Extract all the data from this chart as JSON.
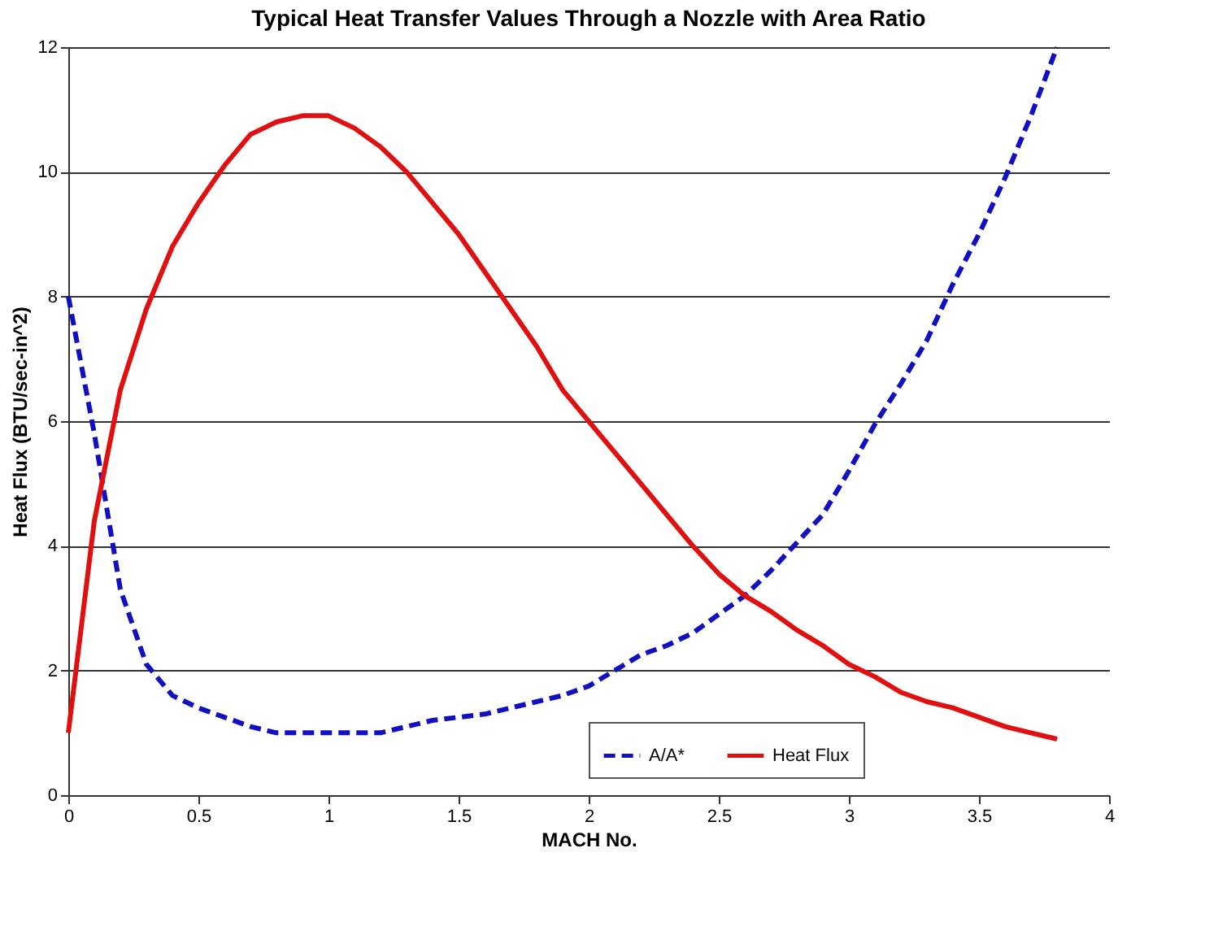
{
  "chart_data": {
    "type": "line",
    "title": "Typical Heat Transfer Values Through a Nozzle with Area Ratio",
    "xlabel": "MACH No.",
    "ylabel": "Heat Flux (BTU/sec-in^2)",
    "x": [
      0,
      0.1,
      0.2,
      0.3,
      0.4,
      0.5,
      0.6,
      0.7,
      0.8,
      0.9,
      1.0,
      1.1,
      1.2,
      1.3,
      1.4,
      1.5,
      1.6,
      1.7,
      1.8,
      1.9,
      2.0,
      2.1,
      2.2,
      2.3,
      2.4,
      2.5,
      2.6,
      2.7,
      2.8,
      2.9,
      3.0,
      3.1,
      3.2,
      3.3,
      3.4,
      3.5,
      3.6,
      3.7,
      3.8
    ],
    "series": [
      {
        "name": "A/A*",
        "color": "#1010c0",
        "line_style": "dashed",
        "values": [
          8.0,
          5.8,
          3.3,
          2.1,
          1.6,
          1.4,
          1.25,
          1.1,
          1.0,
          1.0,
          1.0,
          1.0,
          1.0,
          1.1,
          1.2,
          1.25,
          1.3,
          1.4,
          1.5,
          1.6,
          1.75,
          2.0,
          2.25,
          2.4,
          2.6,
          2.9,
          3.2,
          3.6,
          4.05,
          4.5,
          5.2,
          5.95,
          6.6,
          7.3,
          8.2,
          9.0,
          9.9,
          10.9,
          12.0
        ]
      },
      {
        "name": "Heat Flux",
        "color": "#e01010",
        "line_style": "solid",
        "values": [
          1.0,
          4.4,
          6.5,
          7.8,
          8.8,
          9.5,
          10.1,
          10.6,
          10.8,
          10.9,
          10.9,
          10.7,
          10.4,
          10.0,
          9.5,
          9.0,
          8.4,
          7.8,
          7.2,
          6.5,
          6.0,
          5.5,
          5.0,
          4.5,
          4.0,
          3.55,
          3.2,
          2.95,
          2.65,
          2.4,
          2.1,
          1.9,
          1.65,
          1.5,
          1.4,
          1.25,
          1.1,
          1.0,
          0.9
        ]
      }
    ],
    "xlim": [
      0,
      4
    ],
    "xticks": [
      0,
      0.5,
      1,
      1.5,
      2,
      2.5,
      3,
      3.5,
      4
    ],
    "ylim": [
      0,
      12
    ],
    "yticks": [
      0,
      2,
      4,
      6,
      8,
      10,
      12
    ],
    "grid": "y",
    "legend": "bottom",
    "marker": "none"
  }
}
